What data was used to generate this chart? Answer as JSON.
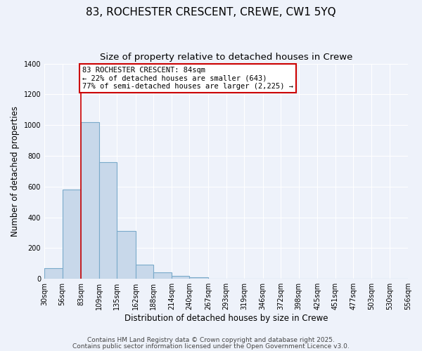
{
  "title": "83, ROCHESTER CRESCENT, CREWE, CW1 5YQ",
  "subtitle": "Size of property relative to detached houses in Crewe",
  "xlabel": "Distribution of detached houses by size in Crewe",
  "ylabel": "Number of detached properties",
  "bar_color": "#c8d8ea",
  "bar_edge_color": "#7aaaca",
  "background_color": "#eef2fa",
  "grid_color": "#ffffff",
  "bin_edges": [
    30,
    56,
    83,
    109,
    135,
    162,
    188,
    214,
    240,
    267,
    293,
    319,
    346,
    372,
    398,
    425,
    451,
    477,
    503,
    530,
    556
  ],
  "bin_labels": [
    "30sqm",
    "56sqm",
    "83sqm",
    "109sqm",
    "135sqm",
    "162sqm",
    "188sqm",
    "214sqm",
    "240sqm",
    "267sqm",
    "293sqm",
    "319sqm",
    "346sqm",
    "372sqm",
    "398sqm",
    "425sqm",
    "451sqm",
    "477sqm",
    "503sqm",
    "530sqm",
    "556sqm"
  ],
  "bar_heights": [
    70,
    580,
    1020,
    760,
    310,
    90,
    40,
    20,
    10,
    0,
    0,
    0,
    0,
    0,
    0,
    0,
    0,
    0,
    0,
    0
  ],
  "red_line_x": 83,
  "annotation_line1": "83 ROCHESTER CRESCENT: 84sqm",
  "annotation_line2": "← 22% of detached houses are smaller (643)",
  "annotation_line3": "77% of semi-detached houses are larger (2,225) →",
  "annotation_box_color": "#ffffff",
  "annotation_box_edge": "#cc0000",
  "red_line_color": "#cc0000",
  "ylim": [
    0,
    1400
  ],
  "yticks": [
    0,
    200,
    400,
    600,
    800,
    1000,
    1200,
    1400
  ],
  "footer1": "Contains HM Land Registry data © Crown copyright and database right 2025.",
  "footer2": "Contains public sector information licensed under the Open Government Licence v3.0.",
  "title_fontsize": 11,
  "subtitle_fontsize": 9.5,
  "axis_label_fontsize": 8.5,
  "tick_fontsize": 7,
  "annotation_fontsize": 7.5,
  "footer_fontsize": 6.5
}
